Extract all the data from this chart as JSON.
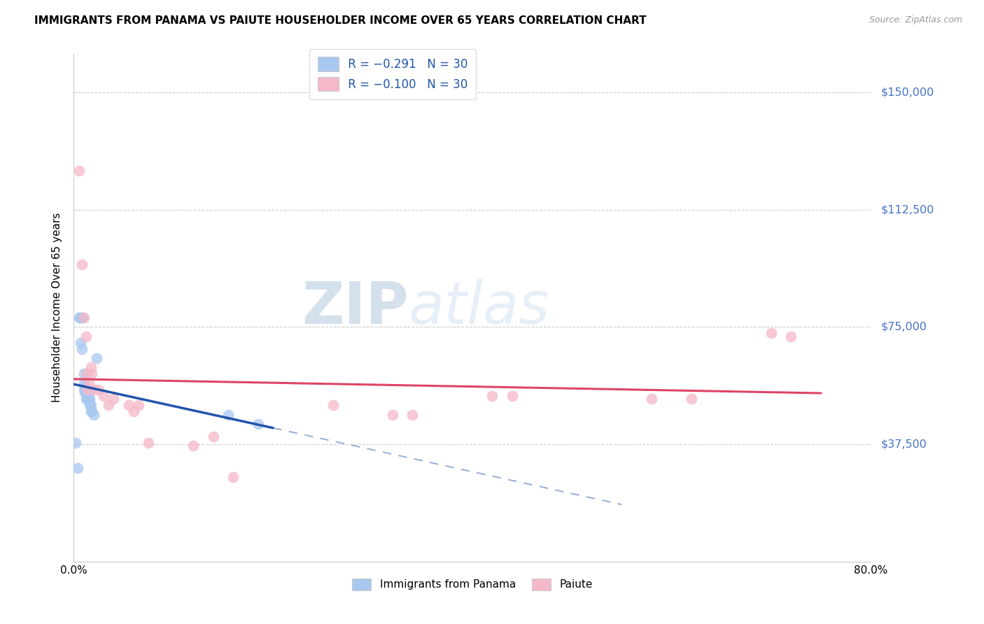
{
  "title": "IMMIGRANTS FROM PANAMA VS PAIUTE HOUSEHOLDER INCOME OVER 65 YEARS CORRELATION CHART",
  "source": "Source: ZipAtlas.com",
  "ylabel": "Householder Income Over 65 years",
  "legend_label_1": "Immigrants from Panama",
  "legend_label_2": "Paiute",
  "legend_r1": "R = −0.291",
  "legend_n1": "N = 30",
  "legend_r2": "R = −0.100",
  "legend_n2": "N = 30",
  "xlim": [
    0.0,
    0.8
  ],
  "ylim": [
    0,
    162500
  ],
  "yticks": [
    0,
    37500,
    75000,
    112500,
    150000
  ],
  "ytick_labels": [
    "",
    "$37,500",
    "$75,000",
    "$112,500",
    "$150,000"
  ],
  "watermark_zip": "ZIP",
  "watermark_atlas": "atlas",
  "blue_color": "#a8c8f0",
  "pink_color": "#f5b8c8",
  "blue_line_color": "#2255aa",
  "pink_line_color": "#dd4466",
  "scatter_blue": {
    "x": [
      0.002,
      0.004,
      0.005,
      0.006,
      0.007,
      0.008,
      0.009,
      0.01,
      0.01,
      0.01,
      0.011,
      0.011,
      0.012,
      0.012,
      0.013,
      0.013,
      0.013,
      0.014,
      0.014,
      0.015,
      0.015,
      0.016,
      0.016,
      0.017,
      0.017,
      0.018,
      0.02,
      0.023,
      0.155,
      0.185
    ],
    "y": [
      38000,
      30000,
      78000,
      78000,
      70000,
      68000,
      78000,
      60000,
      57000,
      55000,
      56000,
      54000,
      54000,
      52000,
      55000,
      53000,
      52000,
      55000,
      53000,
      54000,
      52000,
      52000,
      50000,
      50000,
      48000,
      48000,
      47000,
      65000,
      47000,
      44000
    ]
  },
  "scatter_pink": {
    "x": [
      0.005,
      0.008,
      0.01,
      0.012,
      0.013,
      0.014,
      0.015,
      0.017,
      0.018,
      0.02,
      0.025,
      0.03,
      0.035,
      0.04,
      0.055,
      0.06,
      0.065,
      0.075,
      0.12,
      0.14,
      0.16,
      0.26,
      0.32,
      0.34,
      0.42,
      0.44,
      0.58,
      0.62,
      0.7,
      0.72
    ],
    "y": [
      125000,
      95000,
      78000,
      72000,
      60000,
      55000,
      57000,
      62000,
      60000,
      55000,
      55000,
      53000,
      50000,
      52000,
      50000,
      48000,
      50000,
      38000,
      37000,
      40000,
      27000,
      50000,
      47000,
      47000,
      53000,
      53000,
      52000,
      52000,
      73000,
      72000
    ]
  }
}
